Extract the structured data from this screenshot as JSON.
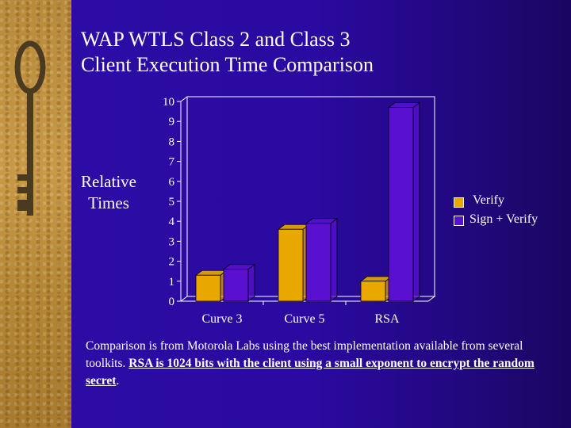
{
  "slide": {
    "title_line1": "WAP WTLS Class 2 and Class 3",
    "title_line2": "Client Execution Time Comparison",
    "ylabel_line1": "Relative",
    "ylabel_line2": "Times",
    "footnote_plain": "Comparison is from Motorola Labs using the best implementation available from several toolkits.",
    "footnote_strong": "RSA is 1024 bits with the client using a small exponent to encrypt the random secret",
    "footnote_end": "."
  },
  "colors": {
    "verify": "#e8a800",
    "sign_verify": "#5a10d0",
    "background": "#2a0aa0",
    "axis": "#ffffff"
  },
  "chart_data": {
    "type": "bar",
    "categories": [
      "Curve 3",
      "Curve 5",
      "RSA"
    ],
    "series": [
      {
        "name": "Verify",
        "values": [
          1.3,
          3.6,
          1.0
        ]
      },
      {
        "name": "Sign + Verify",
        "values": [
          1.6,
          3.9,
          9.7
        ]
      }
    ],
    "ylim": [
      0,
      10
    ],
    "yticks": [
      "0",
      "1",
      "2",
      "3",
      "4",
      "5",
      "6",
      "7",
      "8",
      "9",
      "10"
    ],
    "ylabel": "Relative Times",
    "legend_position": "right",
    "grid": false
  }
}
